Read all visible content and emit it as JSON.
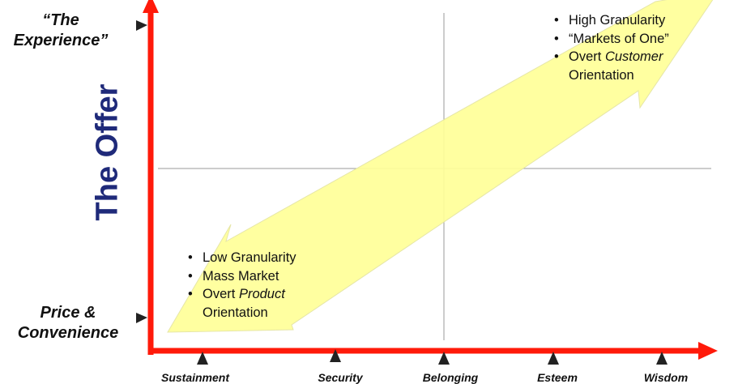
{
  "y_axis": {
    "title": "The Offer",
    "levels": {
      "top": [
        "“The",
        "Experience”"
      ],
      "bottom": [
        "Price &",
        "Convenience"
      ]
    }
  },
  "x_axis": {
    "levels": [
      "Sustainment",
      "Security",
      "Belonging",
      "Esteem",
      "Wisdom"
    ]
  },
  "high_end": {
    "items": [
      {
        "text": "High Granularity"
      },
      {
        "text": "“Markets of One”"
      },
      {
        "prefix": "Overt ",
        "emphasis": "Customer",
        "continuation": "Orientation"
      }
    ]
  },
  "low_end": {
    "items": [
      {
        "text": "Low Granularity"
      },
      {
        "text": "Mass Market"
      },
      {
        "prefix": "Overt ",
        "emphasis": "Product",
        "continuation": "Orientation"
      }
    ]
  },
  "colors": {
    "axis": "#ff1a0a",
    "arrow_fill": "#ffff99",
    "arrow_stroke": "#e6e6a0",
    "grid": "#9a9a9a",
    "marker": "#222222",
    "title": "#1f2a7a"
  }
}
